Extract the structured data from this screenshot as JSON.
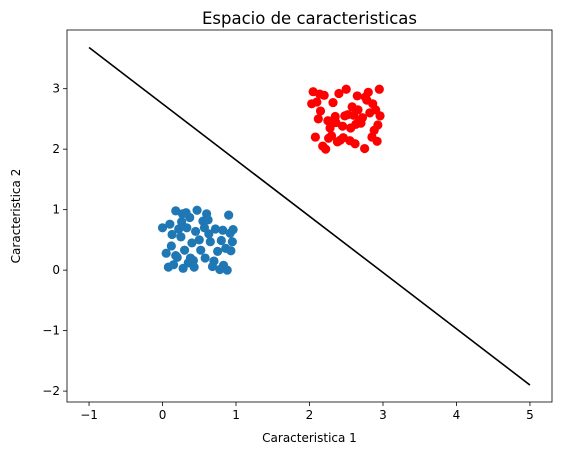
{
  "chart_data": {
    "type": "scatter",
    "title": "Espacio de caracteristicas",
    "xlabel": "Caracteristica 1",
    "ylabel": "Caracteristica 2",
    "xlim": [
      -1.3,
      5.3
    ],
    "ylim": [
      -2.18,
      3.97
    ],
    "xticks": [
      -1,
      0,
      1,
      2,
      3,
      4,
      5
    ],
    "yticks": [
      -2,
      -1,
      0,
      1,
      2,
      3
    ],
    "xtick_labels": [
      "−1",
      "0",
      "1",
      "2",
      "3",
      "4",
      "5"
    ],
    "ytick_labels": [
      "−2",
      "−1",
      "0",
      "1",
      "2",
      "3"
    ],
    "grid": false,
    "series": [
      {
        "color": "#1f77b4",
        "points": [
          [
            0.05,
            0.28
          ],
          [
            0.12,
            0.4
          ],
          [
            0.18,
            0.24
          ],
          [
            0.25,
            0.55
          ],
          [
            0.3,
            0.33
          ],
          [
            0.35,
            0.12
          ],
          [
            0.1,
            0.76
          ],
          [
            0.18,
            0.98
          ],
          [
            0.27,
            0.93
          ],
          [
            0.37,
            0.87
          ],
          [
            0.4,
            0.45
          ],
          [
            0.45,
            0.64
          ],
          [
            0.5,
            0.5
          ],
          [
            0.55,
            0.81
          ],
          [
            0.6,
            0.93
          ],
          [
            0.65,
            0.47
          ],
          [
            0.7,
            0.15
          ],
          [
            0.75,
            0.31
          ],
          [
            0.78,
            0.01
          ],
          [
            0.82,
            0.66
          ],
          [
            0.86,
            0.36
          ],
          [
            0.9,
            0.91
          ],
          [
            0.95,
            0.47
          ],
          [
            0.92,
            0.61
          ],
          [
            0.08,
            0.05
          ],
          [
            0.15,
            0.09
          ],
          [
            0.28,
            0.03
          ],
          [
            0.42,
            0.16
          ],
          [
            0.58,
            0.2
          ],
          [
            0.68,
            0.06
          ],
          [
            0.0,
            0.7
          ],
          [
            0.22,
            0.68
          ],
          [
            0.33,
            0.7
          ],
          [
            0.47,
            0.99
          ],
          [
            0.62,
            0.83
          ],
          [
            0.72,
            0.68
          ],
          [
            0.8,
            0.49
          ],
          [
            0.88,
            0.0
          ],
          [
            0.96,
            0.67
          ],
          [
            0.52,
            0.33
          ],
          [
            0.38,
            0.2
          ],
          [
            0.63,
            0.6
          ],
          [
            0.2,
            0.21
          ],
          [
            0.32,
            0.95
          ],
          [
            0.83,
            0.08
          ],
          [
            0.43,
            0.05
          ],
          [
            0.57,
            0.7
          ],
          [
            0.93,
            0.32
          ],
          [
            0.13,
            0.59
          ],
          [
            0.26,
            0.8
          ]
        ]
      },
      {
        "color": "#ff0000",
        "points": [
          [
            2.05,
            2.95
          ],
          [
            2.1,
            2.78
          ],
          [
            2.15,
            2.63
          ],
          [
            2.2,
            2.89
          ],
          [
            2.25,
            2.47
          ],
          [
            2.3,
            2.22
          ],
          [
            2.35,
            2.54
          ],
          [
            2.4,
            2.92
          ],
          [
            2.45,
            2.38
          ],
          [
            2.5,
            2.99
          ],
          [
            2.55,
            2.14
          ],
          [
            2.6,
            2.56
          ],
          [
            2.65,
            2.88
          ],
          [
            2.7,
            2.43
          ],
          [
            2.75,
            2.01
          ],
          [
            2.8,
            2.94
          ],
          [
            2.85,
            2.2
          ],
          [
            2.9,
            2.65
          ],
          [
            2.95,
            2.99
          ],
          [
            2.93,
            2.4
          ],
          [
            2.08,
            2.2
          ],
          [
            2.18,
            2.05
          ],
          [
            2.28,
            2.35
          ],
          [
            2.38,
            2.12
          ],
          [
            2.48,
            2.55
          ],
          [
            2.58,
            2.7
          ],
          [
            2.68,
            2.48
          ],
          [
            2.78,
            2.81
          ],
          [
            2.88,
            2.31
          ],
          [
            2.12,
            2.5
          ],
          [
            2.22,
            2.0
          ],
          [
            2.32,
            2.77
          ],
          [
            2.42,
            2.15
          ],
          [
            2.52,
            2.57
          ],
          [
            2.62,
            2.09
          ],
          [
            2.72,
            2.52
          ],
          [
            2.82,
            2.6
          ],
          [
            2.92,
            2.13
          ],
          [
            2.03,
            2.75
          ],
          [
            2.14,
            2.91
          ],
          [
            2.26,
            2.18
          ],
          [
            2.36,
            2.44
          ],
          [
            2.46,
            2.19
          ],
          [
            2.56,
            2.35
          ],
          [
            2.66,
            2.65
          ],
          [
            2.76,
            2.86
          ],
          [
            2.86,
            2.75
          ],
          [
            2.96,
            2.55
          ],
          [
            2.33,
            2.48
          ],
          [
            2.63,
            2.41
          ]
        ]
      }
    ],
    "line": {
      "color": "#000000",
      "x": [
        -1,
        5
      ],
      "y": [
        3.68,
        -1.9
      ]
    }
  }
}
